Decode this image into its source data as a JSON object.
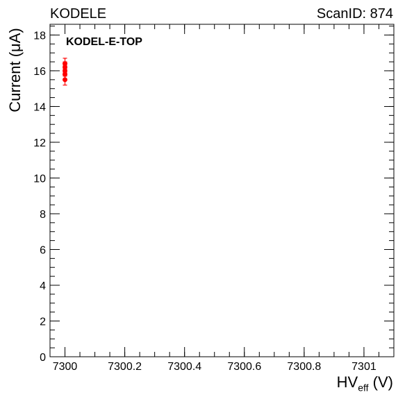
{
  "header": {
    "left": "KODELE",
    "right": "ScanID: 874"
  },
  "chart_data": {
    "type": "scatter",
    "title": "",
    "xlabel_main": "HV",
    "xlabel_sub": "eff",
    "xlabel_unit": " (V)",
    "ylabel": "Current (μA)",
    "annotation": "KODEL-E-TOP",
    "xlim": [
      7299.95,
      7301.1
    ],
    "ylim": [
      0,
      18.6
    ],
    "x_ticks": [
      {
        "value": 7300,
        "label": "7300"
      },
      {
        "value": 7300.2,
        "label": "7300.2"
      },
      {
        "value": 7300.4,
        "label": "7300.4"
      },
      {
        "value": 7300.6,
        "label": "7300.6"
      },
      {
        "value": 7300.8,
        "label": "7300.8"
      },
      {
        "value": 7301,
        "label": "7301"
      }
    ],
    "y_ticks": [
      {
        "value": 0,
        "label": "0"
      },
      {
        "value": 2,
        "label": "2"
      },
      {
        "value": 4,
        "label": "4"
      },
      {
        "value": 6,
        "label": "6"
      },
      {
        "value": 8,
        "label": "8"
      },
      {
        "value": 10,
        "label": "10"
      },
      {
        "value": 12,
        "label": "12"
      },
      {
        "value": 14,
        "label": "14"
      },
      {
        "value": 16,
        "label": "16"
      },
      {
        "value": 18,
        "label": "18"
      }
    ],
    "series": [
      {
        "color": "#ff0000",
        "points": [
          {
            "x": 7300,
            "y": 16.4,
            "err": 0.3
          },
          {
            "x": 7300,
            "y": 16.2,
            "err": 0.3
          },
          {
            "x": 7300,
            "y": 16.0,
            "err": 0.3
          },
          {
            "x": 7300,
            "y": 15.8,
            "err": 0.3
          },
          {
            "x": 7300,
            "y": 15.5,
            "err": 0.3
          }
        ]
      }
    ]
  }
}
